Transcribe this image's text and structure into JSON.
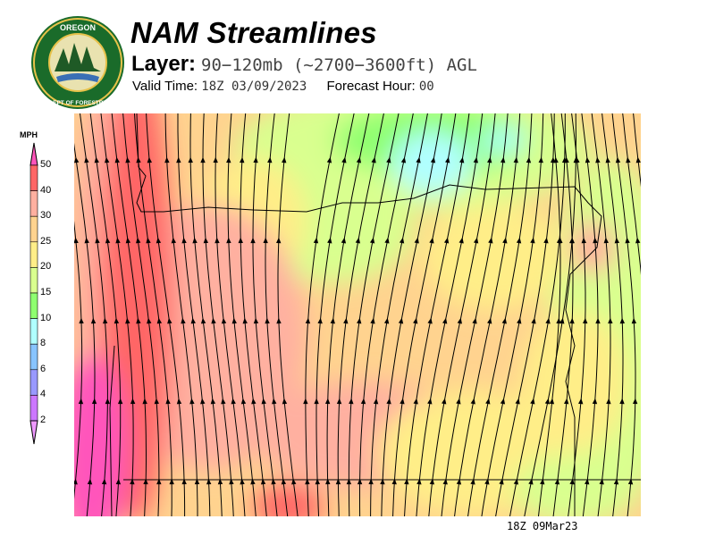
{
  "header": {
    "title": "NAM Streamlines",
    "layer_label": "Layer:",
    "layer_value": "90−120mb (~2700−3600ft) AGL",
    "valid_time_label": "Valid Time:",
    "valid_time_value": "18Z 03/09/2023",
    "forecast_hour_label": "Forecast Hour:",
    "forecast_hour_value": "00"
  },
  "logo": {
    "text_top": "OREGON",
    "text_bottom": "DEPARTMENT OF FORESTRY"
  },
  "legend": {
    "unit": "MPH",
    "ticks": [
      "50",
      "40",
      "30",
      "25",
      "20",
      "15",
      "10",
      "8",
      "6",
      "4",
      "2"
    ],
    "colors": [
      "#ff55bb",
      "#ff6666",
      "#ffb0a0",
      "#ffd38f",
      "#ffee88",
      "#d9ff8f",
      "#8fff70",
      "#b0ffff",
      "#88c4ff",
      "#9999ff",
      "#cc77ff",
      "#ee99ff"
    ]
  },
  "map": {
    "stamp": "18Z 09Mar23"
  }
}
